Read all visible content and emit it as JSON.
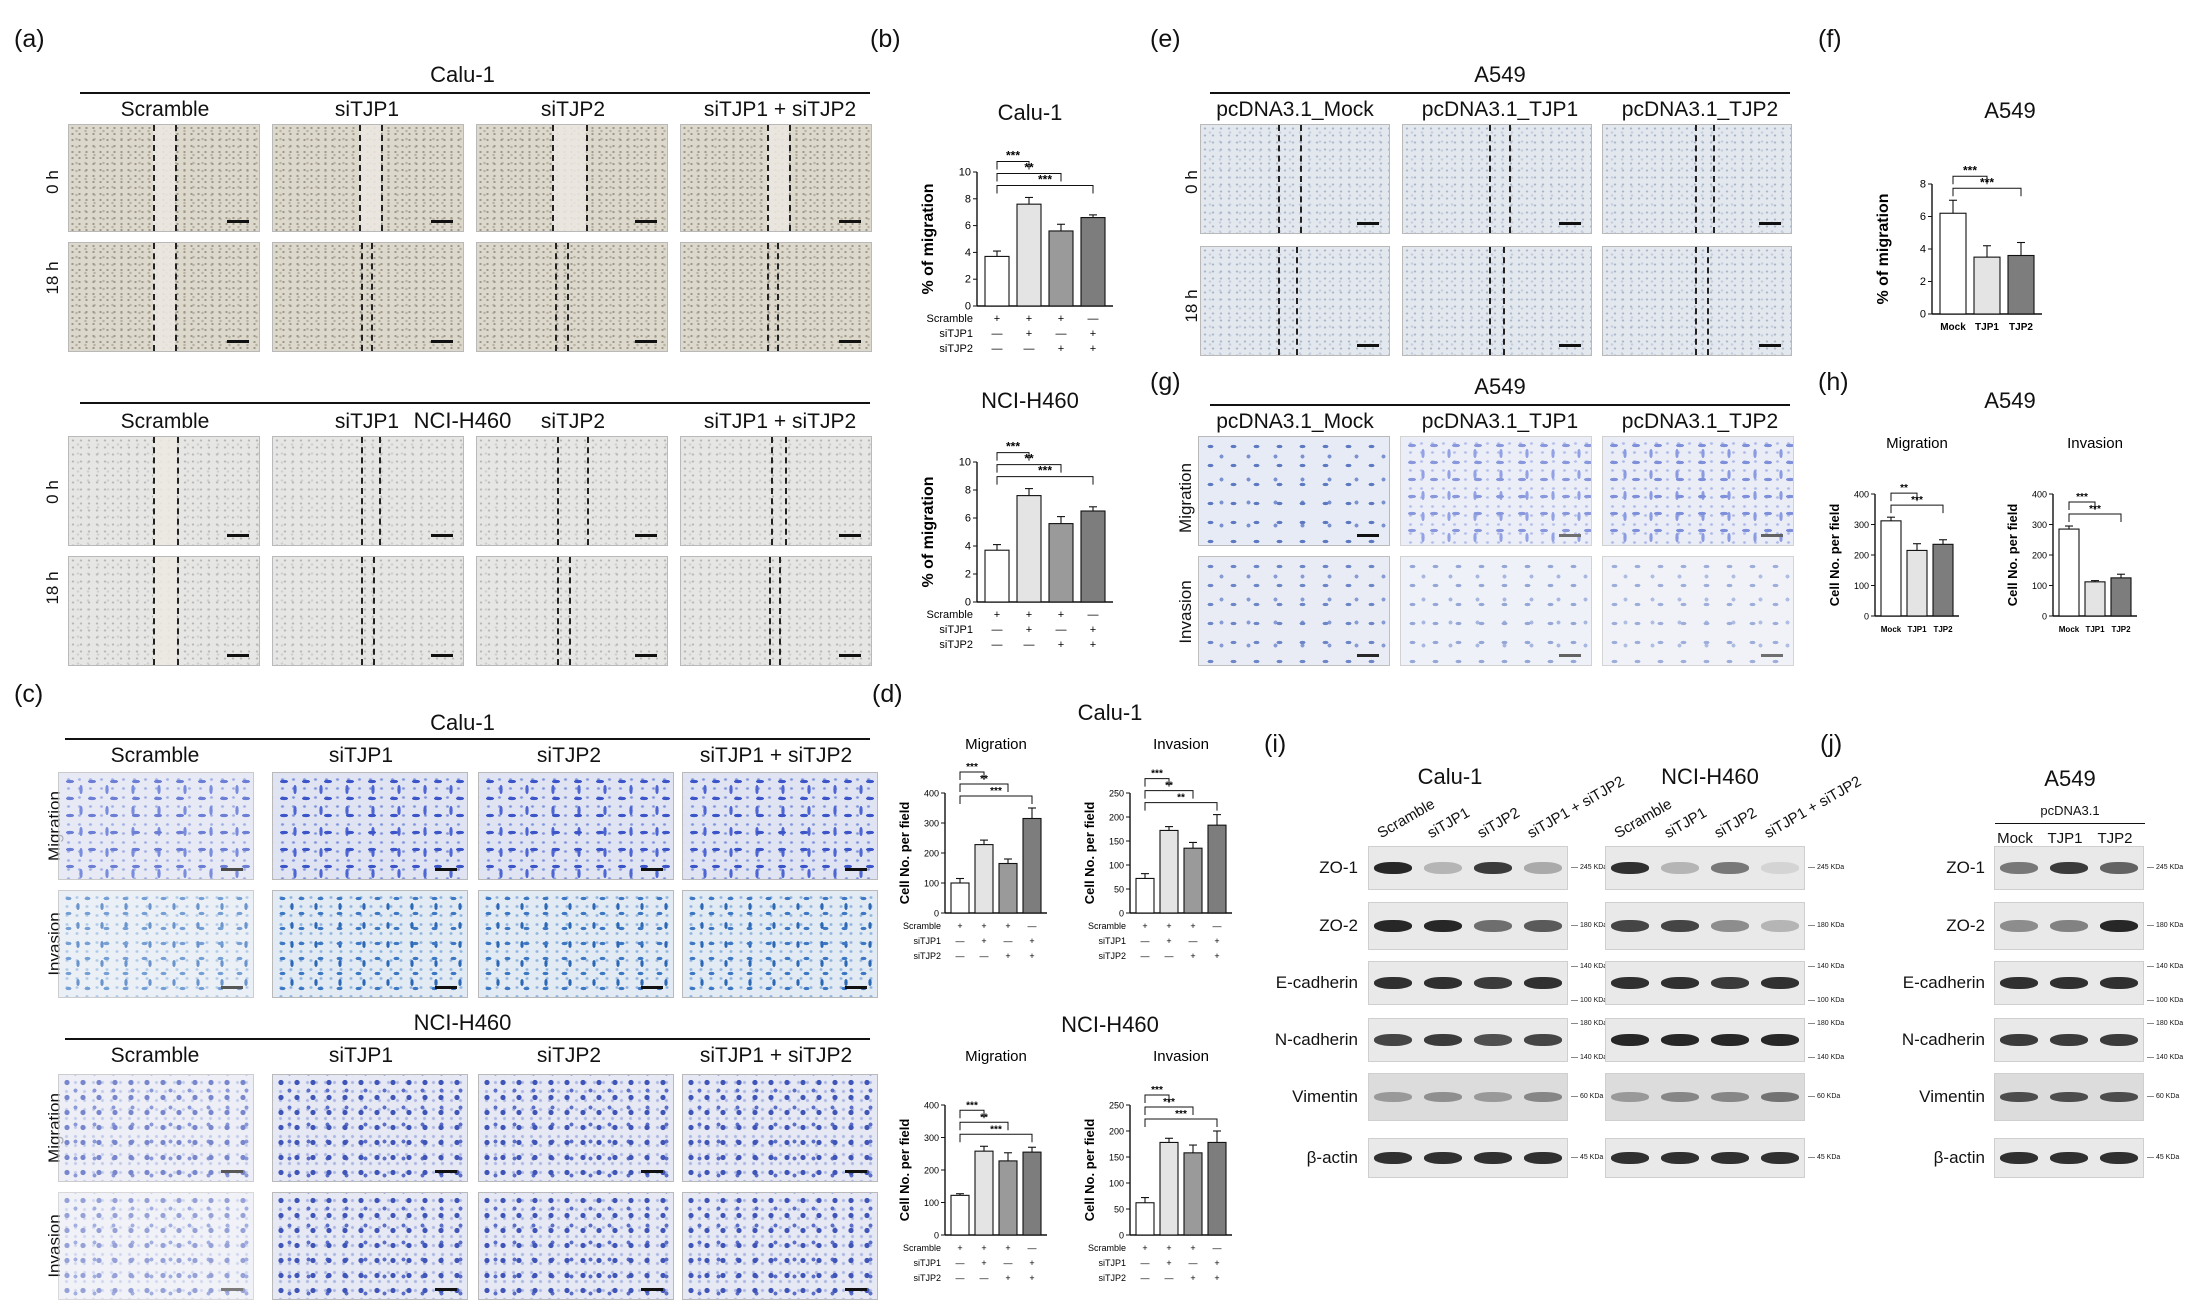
{
  "panels": {
    "a": "(a)",
    "b": "(b)",
    "c": "(c)",
    "d": "(d)",
    "e": "(e)",
    "f": "(f)",
    "g": "(g)",
    "h": "(h)",
    "i": "(i)",
    "j": "(j)"
  },
  "cell_lines": {
    "calu1": "Calu-1",
    "h460": "NCI-H460",
    "a549": "A549"
  },
  "si_conditions": [
    "Scramble",
    "siTJP1",
    "siTJP2",
    "siTJP1 + siTJP2"
  ],
  "pc_conditions": [
    "pcDNA3.1_Mock",
    "pcDNA3.1_TJP1",
    "pcDNA3.1_TJP2"
  ],
  "time_rows": [
    "0 h",
    "18 h"
  ],
  "assay_rows": [
    "Migration",
    "Invasion"
  ],
  "treatment_rows": {
    "labels": [
      "Scramble",
      "siTJP1",
      "siTJP2"
    ],
    "signs": [
      [
        "+",
        "+",
        "+",
        "—"
      ],
      [
        "—",
        "+",
        "—",
        "+"
      ],
      [
        "—",
        "—",
        "+",
        "+"
      ]
    ]
  },
  "colors": {
    "bar_white": "#ffffff",
    "bar_light": "#e4e4e4",
    "bar_mid": "#9a9a9a",
    "bar_dark": "#7d7d7d",
    "ink": "#111111"
  },
  "blots": {
    "proteins": [
      "ZO-1",
      "ZO-2",
      "E-cadherin",
      "N-cadherin",
      "Vimentin",
      "β-actin"
    ],
    "si_lanes": [
      "Scramble",
      "siTJP1",
      "siTJP2",
      "siTJP1 + siTJP2"
    ],
    "pc_header": "pcDNA3.1",
    "pc_lanes": [
      "Mock",
      "TJP1",
      "TJP2"
    ],
    "markers": {
      "zo1": "245 KDa",
      "zo2": "180 KDa",
      "ecad_hi": "140 KDa",
      "ecad_lo": "100 KDa",
      "ncad_hi": "180 KDa",
      "ncad_lo": "140 KDa",
      "vim": "60 KDa",
      "actin": "45 KDa"
    },
    "intensity": {
      "calu1": [
        [
          0.95,
          0.25,
          0.85,
          0.3
        ],
        [
          0.95,
          0.95,
          0.6,
          0.7
        ],
        [
          0.9,
          0.9,
          0.85,
          0.9
        ],
        [
          0.8,
          0.85,
          0.75,
          0.8
        ],
        [
          0.35,
          0.4,
          0.35,
          0.45
        ],
        [
          0.9,
          0.9,
          0.9,
          0.9
        ]
      ],
      "h460": [
        [
          0.9,
          0.25,
          0.55,
          0.1
        ],
        [
          0.8,
          0.8,
          0.45,
          0.25
        ],
        [
          0.9,
          0.9,
          0.85,
          0.9
        ],
        [
          0.95,
          0.95,
          0.95,
          0.95
        ],
        [
          0.35,
          0.45,
          0.45,
          0.55
        ],
        [
          0.9,
          0.9,
          0.9,
          0.9
        ]
      ],
      "a549": [
        [
          0.55,
          0.85,
          0.65
        ],
        [
          0.45,
          0.5,
          0.95
        ],
        [
          0.9,
          0.9,
          0.9
        ],
        [
          0.85,
          0.85,
          0.85
        ],
        [
          0.75,
          0.75,
          0.75
        ],
        [
          0.9,
          0.9,
          0.9
        ]
      ]
    }
  },
  "chart_data": [
    {
      "id": "b1",
      "type": "bar",
      "title": "Calu-1",
      "ylabel": "% of migration",
      "ylim": [
        0,
        10
      ],
      "yticks": [
        0,
        2,
        4,
        6,
        8,
        10
      ],
      "categories": [
        "Scramble",
        "siTJP1",
        "siTJP2",
        "siTJP1 + siTJP2"
      ],
      "values": [
        3.7,
        7.6,
        5.6,
        6.6
      ],
      "errors": [
        0.4,
        0.5,
        0.5,
        0.2
      ],
      "significance": [
        {
          "vs": 1,
          "label": "***"
        },
        {
          "vs": 2,
          "label": "**"
        },
        {
          "vs": 3,
          "label": "***"
        }
      ]
    },
    {
      "id": "b2",
      "type": "bar",
      "title": "NCI-H460",
      "ylabel": "% of migration",
      "ylim": [
        0,
        10
      ],
      "yticks": [
        0,
        2,
        4,
        6,
        8,
        10
      ],
      "categories": [
        "Scramble",
        "siTJP1",
        "siTJP2",
        "siTJP1 + siTJP2"
      ],
      "values": [
        3.7,
        7.6,
        5.6,
        6.5
      ],
      "errors": [
        0.4,
        0.5,
        0.5,
        0.3
      ],
      "significance": [
        {
          "vs": 1,
          "label": "***"
        },
        {
          "vs": 2,
          "label": "**"
        },
        {
          "vs": 3,
          "label": "***"
        }
      ]
    },
    {
      "id": "d1",
      "type": "bar",
      "title": "Migration",
      "ylabel": "Cell No. per field",
      "ylim": [
        0,
        400
      ],
      "yticks": [
        0,
        100,
        200,
        300,
        400
      ],
      "categories": [
        "Scramble",
        "siTJP1",
        "siTJP2",
        "siTJP1 + siTJP2"
      ],
      "values": [
        100,
        228,
        165,
        315
      ],
      "errors": [
        15,
        15,
        15,
        35
      ],
      "significance": [
        {
          "vs": 1,
          "label": "***"
        },
        {
          "vs": 2,
          "label": "**"
        },
        {
          "vs": 3,
          "label": "***"
        }
      ]
    },
    {
      "id": "d2",
      "type": "bar",
      "title": "Invasion",
      "ylabel": "Cell No. per field",
      "ylim": [
        0,
        250
      ],
      "yticks": [
        0,
        50,
        100,
        150,
        200,
        250
      ],
      "categories": [
        "Scramble",
        "siTJP1",
        "siTJP2",
        "siTJP1 + siTJP2"
      ],
      "values": [
        72,
        172,
        135,
        183
      ],
      "errors": [
        10,
        8,
        12,
        22
      ],
      "significance": [
        {
          "vs": 1,
          "label": "***"
        },
        {
          "vs": 2,
          "label": "**"
        },
        {
          "vs": 3,
          "label": "**"
        }
      ]
    },
    {
      "id": "d3",
      "type": "bar",
      "title": "Migration",
      "ylabel": "Cell No. per field",
      "ylim": [
        0,
        400
      ],
      "yticks": [
        0,
        100,
        200,
        300,
        400
      ],
      "categories": [
        "Scramble",
        "siTJP1",
        "siTJP2",
        "siTJP1 + siTJP2"
      ],
      "values": [
        122,
        258,
        228,
        255
      ],
      "errors": [
        5,
        15,
        25,
        15
      ],
      "significance": [
        {
          "vs": 1,
          "label": "***"
        },
        {
          "vs": 2,
          "label": "**"
        },
        {
          "vs": 3,
          "label": "***"
        }
      ]
    },
    {
      "id": "d4",
      "type": "bar",
      "title": "Invasion",
      "ylabel": "Cell No. per field",
      "ylim": [
        0,
        250
      ],
      "yticks": [
        0,
        50,
        100,
        150,
        200,
        250
      ],
      "categories": [
        "Scramble",
        "siTJP1",
        "siTJP2",
        "siTJP1 + siTJP2"
      ],
      "values": [
        62,
        178,
        158,
        178
      ],
      "errors": [
        10,
        8,
        15,
        22
      ],
      "significance": [
        {
          "vs": 1,
          "label": "***"
        },
        {
          "vs": 2,
          "label": "***"
        },
        {
          "vs": 3,
          "label": "***"
        }
      ]
    },
    {
      "id": "f1",
      "type": "bar",
      "title": "A549",
      "ylabel": "% of migration",
      "ylim": [
        0,
        8
      ],
      "yticks": [
        0,
        2,
        4,
        6,
        8
      ],
      "categories": [
        "Mock",
        "TJP1",
        "TJP2"
      ],
      "values": [
        6.2,
        3.5,
        3.6
      ],
      "errors": [
        0.8,
        0.7,
        0.8
      ],
      "significance": [
        {
          "vs": 1,
          "label": "***"
        },
        {
          "vs": 2,
          "label": "***"
        }
      ]
    },
    {
      "id": "h1",
      "type": "bar",
      "title": "Migration",
      "ylabel": "Cell No. per field",
      "ylim": [
        0,
        400
      ],
      "yticks": [
        0,
        100,
        200,
        300,
        400
      ],
      "categories": [
        "Mock",
        "TJP1",
        "TJP2"
      ],
      "values": [
        312,
        215,
        235
      ],
      "errors": [
        12,
        22,
        15
      ],
      "significance": [
        {
          "vs": 1,
          "label": "**"
        },
        {
          "vs": 2,
          "label": "***"
        }
      ]
    },
    {
      "id": "h2",
      "type": "bar",
      "title": "Invasion",
      "ylabel": "Cell No. per field",
      "ylim": [
        0,
        400
      ],
      "yticks": [
        0,
        100,
        200,
        300,
        400
      ],
      "categories": [
        "Mock",
        "TJP1",
        "TJP2"
      ],
      "values": [
        285,
        112,
        125
      ],
      "errors": [
        10,
        4,
        12
      ],
      "significance": [
        {
          "vs": 1,
          "label": "***"
        },
        {
          "vs": 2,
          "label": "***"
        }
      ]
    }
  ]
}
